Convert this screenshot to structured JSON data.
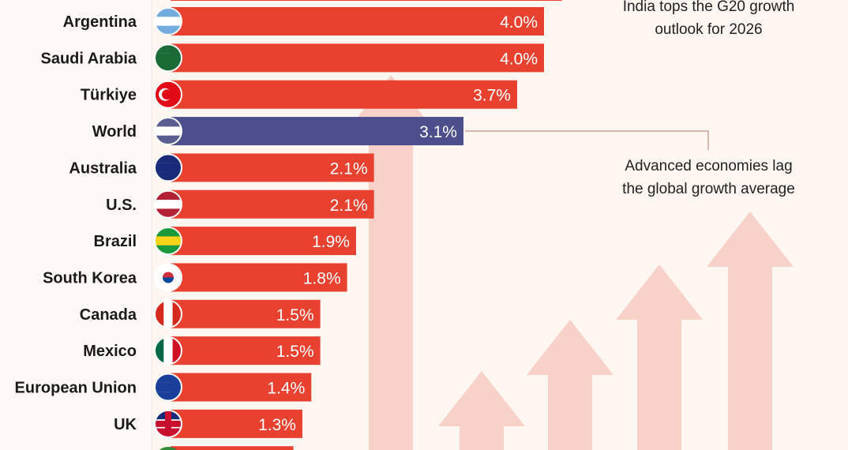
{
  "chart_data": {
    "type": "bar",
    "orientation": "horizontal",
    "categories": [
      "Argentina",
      "Saudi Arabia",
      "Türkiye",
      "World",
      "Australia",
      "U.S.",
      "Brazil",
      "South Korea",
      "Canada",
      "Mexico",
      "European Union",
      "UK"
    ],
    "values": [
      4.0,
      4.0,
      3.7,
      3.1,
      2.1,
      2.1,
      1.9,
      1.8,
      1.5,
      1.5,
      1.4,
      1.3
    ],
    "labels": [
      "4.0%",
      "4.0%",
      "3.7%",
      "3.1%",
      "2.1%",
      "2.1%",
      "1.9%",
      "1.8%",
      "1.5%",
      "1.5%",
      "1.4%",
      "1.3%"
    ],
    "unit": "%",
    "highlight": "World",
    "colors": {
      "bar": "#e8412f",
      "highlight": "#4c4f8c",
      "background": "#fdf6f1",
      "arrows": "#f6c8bf"
    },
    "flag_icons": [
      "argentina-flag",
      "saudi-arabia-flag",
      "turkiye-flag",
      "globe",
      "australia-flag",
      "us-flag",
      "brazil-flag",
      "south-korea-flag",
      "canada-flag",
      "mexico-flag",
      "eu-flag",
      "uk-flag"
    ],
    "annotations": [
      {
        "text_line1": "India tops the G20 growth",
        "text_line2": "outlook for 2026"
      },
      {
        "text_line1": "Advanced economies lag",
        "text_line2": "the global growth average",
        "target": "World"
      }
    ],
    "grid": false
  }
}
